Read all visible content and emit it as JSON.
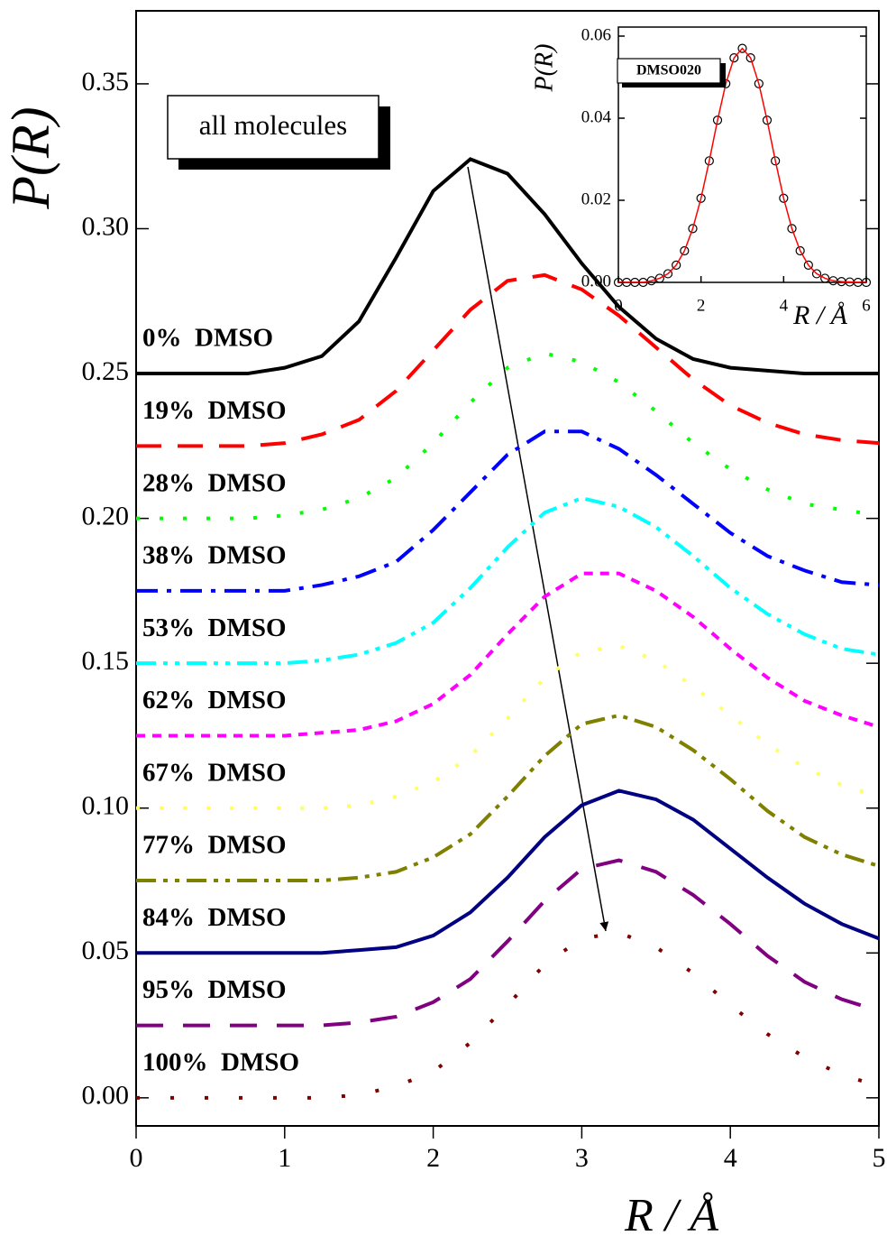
{
  "chart_data": [
    {
      "type": "line",
      "x": [
        0,
        0.25,
        0.5,
        0.75,
        1,
        1.25,
        1.5,
        1.75,
        2,
        2.25,
        2.5,
        2.75,
        3,
        3.25,
        3.5,
        3.75,
        4,
        4.25,
        4.5,
        4.75,
        5
      ],
      "xlim": [
        0,
        5
      ],
      "ylim": [
        -0.0097,
        0.3752
      ],
      "xticks": [
        0,
        1,
        2,
        3,
        4,
        5
      ],
      "yticks": [
        {
          "value": 0,
          "label": "0.00"
        },
        {
          "value": 0.05,
          "label": "0.05"
        },
        {
          "value": 0.1,
          "label": "0.10"
        },
        {
          "value": 0.15,
          "label": "0.15"
        },
        {
          "value": 0.2,
          "label": "0.20"
        },
        {
          "value": 0.25,
          "label": "0.25"
        },
        {
          "value": 0.3,
          "label": "0.30"
        },
        {
          "value": 0.35,
          "label": "0.35"
        }
      ],
      "xlabel": "R / Å",
      "ylabel": "P(R)",
      "annotations": [
        "all molecules"
      ],
      "series": [
        {
          "name": "0%  DMSO",
          "color": "#000000",
          "dash": "solid",
          "values": [
            0.25,
            0.25,
            0.25,
            0.25,
            0.252,
            0.256,
            0.268,
            0.29,
            0.313,
            0.324,
            0.319,
            0.305,
            0.288,
            0.273,
            0.262,
            0.255,
            0.252,
            0.251,
            0.25,
            0.25,
            0.25
          ]
        },
        {
          "name": "19%  DMSO",
          "color": "#ff0000",
          "dash": "dash",
          "values": [
            0.225,
            0.225,
            0.225,
            0.225,
            0.226,
            0.229,
            0.234,
            0.244,
            0.258,
            0.272,
            0.282,
            0.284,
            0.279,
            0.27,
            0.259,
            0.248,
            0.239,
            0.233,
            0.229,
            0.227,
            0.226
          ]
        },
        {
          "name": "28%  DMSO",
          "color": "#00ff00",
          "dash": "dot",
          "values": [
            0.2,
            0.2,
            0.2,
            0.2,
            0.201,
            0.203,
            0.207,
            0.214,
            0.226,
            0.24,
            0.252,
            0.257,
            0.254,
            0.247,
            0.237,
            0.226,
            0.217,
            0.21,
            0.205,
            0.203,
            0.201
          ]
        },
        {
          "name": "38%  DMSO",
          "color": "#0000ff",
          "dash": "dashdot",
          "values": [
            0.175,
            0.175,
            0.175,
            0.175,
            0.175,
            0.177,
            0.18,
            0.185,
            0.196,
            0.209,
            0.222,
            0.23,
            0.23,
            0.224,
            0.215,
            0.205,
            0.195,
            0.187,
            0.182,
            0.178,
            0.177
          ]
        },
        {
          "name": "53%  DMSO",
          "color": "#00ffff",
          "dash": "dashdotdot",
          "values": [
            0.15,
            0.15,
            0.15,
            0.15,
            0.15,
            0.151,
            0.153,
            0.157,
            0.164,
            0.176,
            0.19,
            0.202,
            0.207,
            0.204,
            0.197,
            0.187,
            0.176,
            0.167,
            0.16,
            0.155,
            0.153
          ]
        },
        {
          "name": "62%  DMSO",
          "color": "#ff00ff",
          "dash": "shortdash",
          "values": [
            0.125,
            0.125,
            0.125,
            0.125,
            0.125,
            0.126,
            0.127,
            0.13,
            0.136,
            0.146,
            0.16,
            0.173,
            0.181,
            0.181,
            0.175,
            0.166,
            0.155,
            0.145,
            0.137,
            0.132,
            0.128
          ]
        },
        {
          "name": "67%  DMSO",
          "color": "#ffff66",
          "dash": "dot",
          "values": [
            0.1,
            0.1,
            0.1,
            0.1,
            0.1,
            0.1,
            0.101,
            0.104,
            0.109,
            0.118,
            0.131,
            0.145,
            0.154,
            0.156,
            0.151,
            0.142,
            0.132,
            0.122,
            0.114,
            0.108,
            0.104
          ]
        },
        {
          "name": "77%  DMSO",
          "color": "#808000",
          "dash": "dashdotdot",
          "values": [
            0.075,
            0.075,
            0.075,
            0.075,
            0.075,
            0.075,
            0.076,
            0.078,
            0.083,
            0.091,
            0.104,
            0.118,
            0.129,
            0.132,
            0.128,
            0.12,
            0.11,
            0.099,
            0.09,
            0.084,
            0.08
          ]
        },
        {
          "name": "84%  DMSO",
          "color": "#000080",
          "dash": "solid",
          "values": [
            0.05,
            0.05,
            0.05,
            0.05,
            0.05,
            0.05,
            0.051,
            0.052,
            0.056,
            0.064,
            0.076,
            0.09,
            0.101,
            0.106,
            0.103,
            0.096,
            0.086,
            0.076,
            0.067,
            0.06,
            0.055
          ]
        },
        {
          "name": "95%  DMSO",
          "color": "#800080",
          "dash": "longdash",
          "values": [
            0.025,
            0.025,
            0.025,
            0.025,
            0.025,
            0.025,
            0.026,
            0.028,
            0.033,
            0.041,
            0.054,
            0.068,
            0.079,
            0.082,
            0.078,
            0.07,
            0.06,
            0.049,
            0.04,
            0.034,
            0.03
          ]
        },
        {
          "name": "100%  DMSO",
          "color": "#800000",
          "dash": "sparsedot",
          "values": [
            0,
            0,
            0,
            0,
            0,
            0,
            0.001,
            0.004,
            0.009,
            0.019,
            0.032,
            0.046,
            0.055,
            0.057,
            0.052,
            0.043,
            0.032,
            0.022,
            0.014,
            0.008,
            0.004
          ]
        }
      ]
    },
    {
      "type": "line",
      "x": [
        0,
        0.2,
        0.4,
        0.6,
        0.8,
        1,
        1.2,
        1.4,
        1.6,
        1.8,
        2,
        2.2,
        2.4,
        2.6,
        2.8,
        3,
        3.2,
        3.4,
        3.6,
        3.8,
        4,
        4.2,
        4.4,
        4.6,
        4.8,
        5,
        5.2,
        5.4,
        5.6,
        5.8,
        6
      ],
      "xlim": [
        0,
        6
      ],
      "ylim": [
        0,
        0.0622
      ],
      "xticks": [
        0,
        2,
        4,
        6
      ],
      "yticks": [
        {
          "value": 0,
          "label": "0.00"
        },
        {
          "value": 0.02,
          "label": "0.02"
        },
        {
          "value": 0.04,
          "label": "0.04"
        },
        {
          "value": 0.06,
          "label": "0.06"
        }
      ],
      "xlabel": "R / Å",
      "ylabel": "P(R)",
      "annotations": [
        "DMSO020"
      ],
      "series": [
        {
          "color": "#000000",
          "marker": "circle",
          "values": [
            0,
            0,
            0,
            0,
            0.0004,
            0.001,
            0.0021,
            0.0042,
            0.0077,
            0.0131,
            0.0205,
            0.0296,
            0.0395,
            0.0484,
            0.0547,
            0.057,
            0.0547,
            0.0484,
            0.0395,
            0.0296,
            0.0205,
            0.0131,
            0.0077,
            0.0042,
            0.0021,
            0.001,
            0.0004,
            0.0002,
            0.0001,
            0,
            0
          ]
        },
        {
          "color": "#ff0000",
          "dash": "solid",
          "values": [
            0,
            0,
            0,
            0,
            0.0004,
            0.001,
            0.0021,
            0.0042,
            0.0077,
            0.0131,
            0.0205,
            0.0296,
            0.0395,
            0.0484,
            0.0547,
            0.057,
            0.0547,
            0.0484,
            0.0395,
            0.0296,
            0.0205,
            0.0131,
            0.0077,
            0.0042,
            0.0021,
            0.001,
            0.0004,
            0.0002,
            0.0001,
            0,
            0
          ]
        }
      ]
    }
  ]
}
